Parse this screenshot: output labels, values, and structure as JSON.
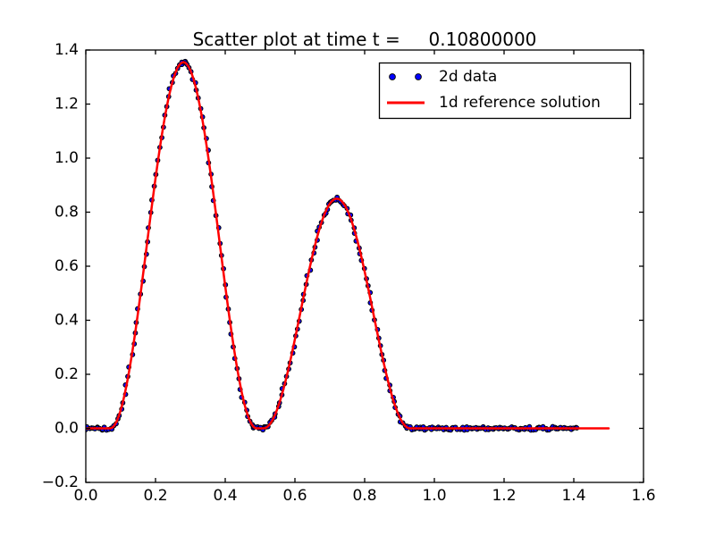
{
  "chart_data": {
    "type": "scatter",
    "title": "Scatter plot at time t =     0.10800000",
    "xlabel": "",
    "ylabel": "",
    "xlim": [
      0.0,
      1.6
    ],
    "ylim": [
      -0.2,
      1.4
    ],
    "grid": false,
    "xticks": [
      {
        "value": 0.0,
        "label": "0.0"
      },
      {
        "value": 0.2,
        "label": "0.2"
      },
      {
        "value": 0.4,
        "label": "0.4"
      },
      {
        "value": 0.6,
        "label": "0.6"
      },
      {
        "value": 0.8,
        "label": "0.8"
      },
      {
        "value": 1.0,
        "label": "1.0"
      },
      {
        "value": 1.2,
        "label": "1.2"
      },
      {
        "value": 1.4,
        "label": "1.4"
      },
      {
        "value": 1.6,
        "label": "1.6"
      }
    ],
    "yticks": [
      {
        "value": -0.2,
        "label": "−0.2"
      },
      {
        "value": 0.0,
        "label": "0.0"
      },
      {
        "value": 0.2,
        "label": "0.2"
      },
      {
        "value": 0.4,
        "label": "0.4"
      },
      {
        "value": 0.6,
        "label": "0.6"
      },
      {
        "value": 0.8,
        "label": "0.8"
      },
      {
        "value": 1.0,
        "label": "1.0"
      },
      {
        "value": 1.2,
        "label": "1.2"
      },
      {
        "value": 1.4,
        "label": "1.4"
      }
    ],
    "legend": {
      "position": "upper right",
      "entries": [
        {
          "label": "2d data",
          "type": "scatter",
          "color": "#0000ff"
        },
        {
          "label": "1d reference solution",
          "type": "line",
          "color": "#ff0000"
        }
      ]
    },
    "series": [
      {
        "name": "2d data",
        "type": "scatter",
        "marker": "circle",
        "color": "#0000ff",
        "edge_color": "#000000",
        "x_range": [
          0.0,
          1.41
        ],
        "n_points": 280
      },
      {
        "name": "1d reference solution",
        "type": "line",
        "color": "#ff0000",
        "x_range": [
          0.0,
          1.5
        ]
      }
    ],
    "curve_model": {
      "description": "sum of two raised-cosine humps, zero elsewhere",
      "humps": [
        {
          "amplitude": 1.355,
          "center": 0.28,
          "half_width": 0.21
        },
        {
          "amplitude": 0.85,
          "center": 0.72,
          "half_width": 0.21
        }
      ]
    },
    "key_points": [
      {
        "x": 0.0,
        "y": 0.0
      },
      {
        "x": 0.28,
        "y": 1.355
      },
      {
        "x": 0.5,
        "y": 0.0
      },
      {
        "x": 0.72,
        "y": 0.85
      },
      {
        "x": 0.93,
        "y": 0.0
      },
      {
        "x": 1.41,
        "y": 0.0
      },
      {
        "x": 1.5,
        "y": 0.0
      }
    ]
  },
  "colors": {
    "background": "#ffffff",
    "axes": "#000000",
    "scatter_fill": "#0000ff",
    "scatter_edge": "#000000",
    "reference_line": "#ff0000"
  }
}
